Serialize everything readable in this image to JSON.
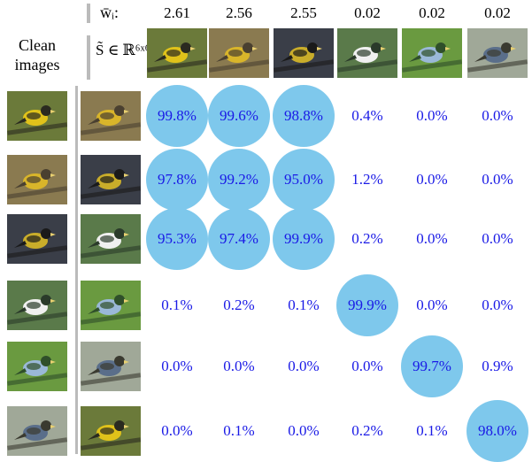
{
  "header": {
    "weight_label": "w̄ᵢ:",
    "matrix_label": "S̃ ∈ ℝ⁶ˣ⁶",
    "clean_label_line1": "Clean",
    "clean_label_line2": "images"
  },
  "columns": [
    {
      "weight": "2.61",
      "image": "evening-grosbeak-male-perched-image"
    },
    {
      "weight": "2.56",
      "image": "evening-grosbeak-on-feeder-image"
    },
    {
      "weight": "2.55",
      "image": "evening-grosbeak-dark-background-image"
    },
    {
      "weight": "0.02",
      "image": "bird-at-window-feeder-image"
    },
    {
      "weight": "0.02",
      "image": "blue-jay-in-foliage-image"
    },
    {
      "weight": "0.02",
      "image": "kingfisher-on-branch-image"
    }
  ],
  "rows": [
    {
      "clean_image": "evening-grosbeak-clean-1",
      "adv_image": "adversarial-1",
      "cells": [
        "99.8%",
        "99.6%",
        "98.8%",
        "0.4%",
        "0.0%",
        "0.0%"
      ],
      "highlight": [
        true,
        true,
        true,
        false,
        false,
        false
      ]
    },
    {
      "clean_image": "evening-grosbeak-clean-2",
      "adv_image": "adversarial-2",
      "cells": [
        "97.8%",
        "99.2%",
        "95.0%",
        "1.2%",
        "0.0%",
        "0.0%"
      ],
      "highlight": [
        true,
        true,
        true,
        false,
        false,
        false
      ]
    },
    {
      "clean_image": "evening-grosbeak-clean-3",
      "adv_image": "adversarial-3",
      "cells": [
        "95.3%",
        "97.4%",
        "99.9%",
        "0.2%",
        "0.0%",
        "0.0%"
      ],
      "highlight": [
        true,
        true,
        true,
        false,
        false,
        false
      ]
    },
    {
      "clean_image": "evening-grosbeak-clean-4",
      "adv_image": "adversarial-4",
      "cells": [
        "0.1%",
        "0.2%",
        "0.1%",
        "99.9%",
        "0.0%",
        "0.0%"
      ],
      "highlight": [
        false,
        false,
        false,
        true,
        false,
        false
      ]
    },
    {
      "clean_image": "brown-bird-clean-5",
      "adv_image": "adversarial-5",
      "cells": [
        "0.0%",
        "0.0%",
        "0.0%",
        "0.0%",
        "99.7%",
        "0.9%"
      ],
      "highlight": [
        false,
        false,
        false,
        false,
        true,
        false
      ]
    },
    {
      "clean_image": "grosbeak-at-window-clean-6",
      "adv_image": "adversarial-6",
      "cells": [
        "0.0%",
        "0.1%",
        "0.0%",
        "0.2%",
        "0.1%",
        "98.0%"
      ],
      "highlight": [
        false,
        false,
        false,
        false,
        false,
        true
      ]
    }
  ],
  "colors": {
    "highlight": "#7ec8ec",
    "value_text": "#1a1ae6",
    "divider": "#bbbbbb"
  }
}
